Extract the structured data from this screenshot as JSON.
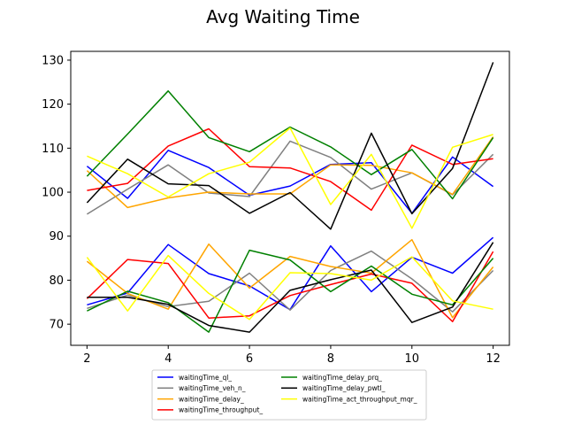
{
  "chart_data": {
    "type": "line",
    "title": "Avg Waiting Time",
    "xlabel": "",
    "ylabel": "",
    "xlim": [
      1.6,
      12.4
    ],
    "ylim": [
      65.2,
      132
    ],
    "x": [
      2,
      3,
      4,
      5,
      6,
      7,
      8,
      9,
      10,
      11,
      12
    ],
    "xticks": [
      2,
      4,
      6,
      8,
      10,
      12
    ],
    "yticks": [
      70,
      80,
      90,
      100,
      110,
      120,
      130
    ],
    "grid": false,
    "legend_position": "bottom-center",
    "legend_columns": 2,
    "series": [
      {
        "name": "waitingTime_ql_",
        "color": "#0000ff",
        "values": [
          105.9,
          98.6,
          109.5,
          105.6,
          99.3,
          101.4,
          106.3,
          106.7,
          95.2,
          108.0,
          101.3
        ]
      },
      {
        "name": "waitingTime_ql_",
        "color": "#0000ff",
        "values": [
          74.4,
          77.1,
          88.1,
          81.5,
          78.7,
          73.3,
          87.8,
          77.4,
          85.2,
          81.6,
          89.7
        ]
      },
      {
        "name": "waitingTime_veh_n_",
        "color": "#808080",
        "values": [
          95.0,
          100.7,
          106.2,
          99.8,
          99.0,
          111.6,
          107.9,
          100.7,
          104.4,
          99.4,
          108.6
        ]
      },
      {
        "name": "waitingTime_veh_n_",
        "color": "#808080",
        "values": [
          73.6,
          76.6,
          74.0,
          75.2,
          81.6,
          73.2,
          82.2,
          86.6,
          80.3,
          72.8,
          82.2
        ]
      },
      {
        "name": "waitingTime_delay_",
        "color": "#ffa500",
        "values": [
          104.9,
          96.5,
          98.7,
          100.0,
          99.6,
          99.6,
          106.2,
          106.1,
          104.4,
          99.5,
          112.6
        ]
      },
      {
        "name": "waitingTime_delay_",
        "color": "#ffa500",
        "values": [
          84.3,
          77.0,
          73.4,
          88.2,
          78.2,
          85.4,
          83.1,
          81.6,
          89.2,
          71.5,
          83.0
        ]
      },
      {
        "name": "waitingTime_throughput_",
        "color": "#ff0000",
        "values": [
          100.4,
          102.0,
          110.5,
          114.4,
          105.8,
          105.5,
          102.4,
          95.9,
          110.7,
          106.3,
          107.6
        ]
      },
      {
        "name": "waitingTime_throughput_",
        "color": "#ff0000",
        "values": [
          75.8,
          84.7,
          83.8,
          71.4,
          71.9,
          76.5,
          79.0,
          81.4,
          79.3,
          70.6,
          86.5
        ]
      },
      {
        "name": "waitingTime_delay_prq_",
        "color": "#008000",
        "values": [
          103.6,
          113.2,
          123.0,
          112.4,
          109.2,
          114.8,
          110.3,
          104.0,
          109.7,
          98.5,
          112.4
        ]
      },
      {
        "name": "waitingTime_delay_prq_",
        "color": "#008000",
        "values": [
          73.0,
          77.5,
          74.9,
          68.2,
          86.8,
          84.6,
          77.4,
          83.2,
          76.8,
          74.4,
          85.0
        ]
      },
      {
        "name": "waitingTime_delay_pwtl_",
        "color": "#000000",
        "values": [
          97.6,
          107.5,
          101.9,
          101.5,
          95.2,
          99.9,
          91.6,
          113.4,
          95.1,
          105.4,
          129.5
        ]
      },
      {
        "name": "waitingTime_delay_pwtl_",
        "color": "#000000",
        "values": [
          76.1,
          76.1,
          74.5,
          69.7,
          68.2,
          77.7,
          80.1,
          82.3,
          70.4,
          73.9,
          88.6
        ]
      },
      {
        "name": "waitingTime_act_throughput_mqr_",
        "color": "#ffff00",
        "values": [
          108.2,
          104.2,
          98.9,
          104.2,
          106.8,
          114.6,
          97.2,
          108.6,
          91.8,
          110.2,
          113.1
        ]
      },
      {
        "name": "waitingTime_act_throughput_mqr_",
        "color": "#ffff00",
        "values": [
          85.2,
          73.0,
          85.6,
          77.0,
          71.1,
          81.7,
          81.5,
          80.0,
          85.3,
          75.3,
          73.4
        ]
      }
    ],
    "legend": [
      {
        "name": "waitingTime_ql_",
        "color": "#0000ff"
      },
      {
        "name": "waitingTime_veh_n_",
        "color": "#808080"
      },
      {
        "name": "waitingTime_delay_",
        "color": "#ffa500"
      },
      {
        "name": "waitingTime_throughput_",
        "color": "#ff0000"
      },
      {
        "name": "waitingTime_delay_prq_",
        "color": "#008000"
      },
      {
        "name": "waitingTime_delay_pwtl_",
        "color": "#000000"
      },
      {
        "name": "waitingTime_act_throughput_mqr_",
        "color": "#ffff00"
      }
    ]
  }
}
